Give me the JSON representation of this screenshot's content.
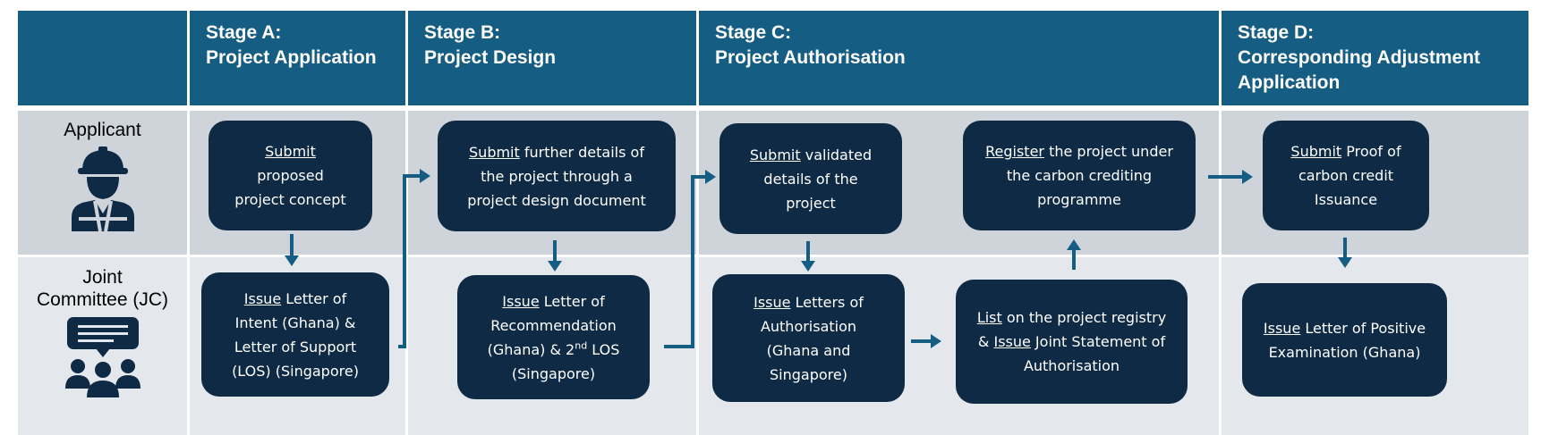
{
  "stages": [
    {
      "line1": "Stage A:",
      "line2": "Project Application",
      "line3": ""
    },
    {
      "line1": "Stage B:",
      "line2": "Project Design",
      "line3": ""
    },
    {
      "line1": "Stage C:",
      "line2": "Project Authorisation",
      "line3": ""
    },
    {
      "line1": "Stage D:",
      "line2": "Corresponding Adjustment",
      "line3": "Application"
    }
  ],
  "roles": {
    "applicant": "Applicant",
    "jc_line1": "Joint",
    "jc_line2": "Committee (JC)"
  },
  "icons": {
    "applicant": "construction-worker-icon",
    "jc": "committee-meeting-icon"
  },
  "colors": {
    "header": "#155d82",
    "box": "#0f2a44",
    "arrow": "#155d82",
    "applicant_row": "#cfd4db",
    "jc_row": "#e4e8ed"
  },
  "boxes": {
    "a_applicant": {
      "verb": "Submit",
      "rest1": "",
      "line2": "proposed",
      "line3": "project concept",
      "line4": ""
    },
    "a_jc": {
      "verb": "Issue",
      "rest1": " Letter of",
      "line2": "Intent (Ghana) &",
      "line3": "Letter of Support",
      "line4": "(LOS) (Singapore)"
    },
    "b_applicant": {
      "verb": "Submit",
      "rest1": " further details of",
      "line2": "the project through a",
      "line3": "project design document",
      "line4": ""
    },
    "b_jc": {
      "verb": "Issue",
      "rest1": " Letter of",
      "line2": "Recommendation",
      "line3a": "(Ghana) & 2",
      "line3sup": "nd",
      "line3b": " LOS",
      "line4": "(Singapore)"
    },
    "c1_applicant": {
      "verb": "Submit",
      "rest1": " validated",
      "line2": "details of the",
      "line3": "project",
      "line4": ""
    },
    "c1_jc": {
      "verb": "Issue",
      "rest1": " Letters of",
      "line2": "Authorisation",
      "line3": "(Ghana and",
      "line4": "Singapore)"
    },
    "c2_applicant": {
      "verb": "Register",
      "rest1": " the project under",
      "line2": "the carbon crediting",
      "line3": "programme",
      "line4": ""
    },
    "c2_jc": {
      "verb": "List",
      "rest1": " on the project registry",
      "line2a": "&",
      "line2verb": "Issue",
      "line2b": " Joint Statement of",
      "line3": "Authorisation",
      "line4": ""
    },
    "d_applicant": {
      "verb": "Submit",
      "rest1": " Proof of",
      "line2": "carbon credit",
      "line3": "Issuance",
      "line4": ""
    },
    "d_jc": {
      "verb": "Issue",
      "rest1": " Letter of Positive",
      "line2": "Examination (Ghana)",
      "line3": "",
      "line4": ""
    }
  }
}
